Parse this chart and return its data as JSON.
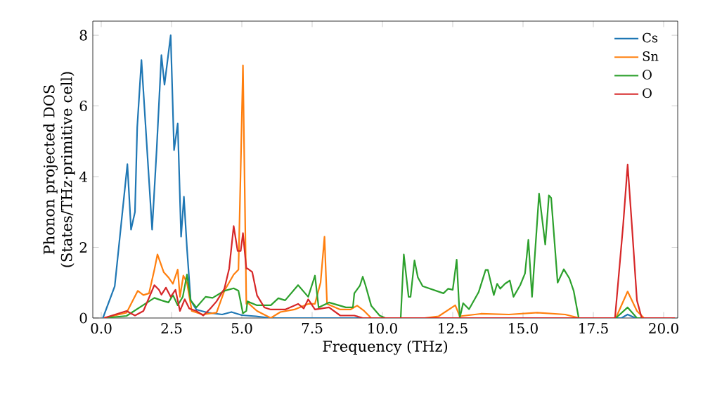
{
  "chart_data": {
    "type": "line",
    "xlabel": "Frequency (THz)",
    "ylabel": "Phonon projected DOS (States/THz·primitive cell)",
    "xlim": [
      -0.3,
      20.5
    ],
    "ylim": [
      0,
      8.4
    ],
    "xticks": [
      {
        "value": 0,
        "label": "0.0"
      },
      {
        "value": 2.5,
        "label": "2.5"
      },
      {
        "value": 5,
        "label": "5.0"
      },
      {
        "value": 7.5,
        "label": "7.5"
      },
      {
        "value": 10,
        "label": "10.0"
      },
      {
        "value": 12.5,
        "label": "12.5"
      },
      {
        "value": 15,
        "label": "15.0"
      },
      {
        "value": 17.5,
        "label": "17.5"
      },
      {
        "value": 20,
        "label": "20.0"
      }
    ],
    "yticks": [
      0,
      2,
      4,
      6,
      8
    ],
    "legend": "top right",
    "series": [
      {
        "name": "Cs",
        "color": "#1f77b4",
        "x": [
          0.06,
          0.48,
          0.93,
          1.06,
          1.2,
          1.28,
          1.43,
          1.81,
          1.97,
          2.14,
          2.25,
          2.47,
          2.59,
          2.72,
          2.84,
          2.94,
          3.05,
          3.18,
          3.38,
          3.8,
          4.3,
          4.63,
          5.0,
          5.5,
          6.0,
          10.0,
          18.5,
          18.72,
          19.0,
          20.4
        ],
        "values": [
          0,
          0.9,
          4.35,
          2.5,
          3.0,
          5.4,
          7.3,
          2.5,
          4.75,
          7.44,
          6.6,
          8.0,
          4.75,
          5.5,
          2.3,
          3.43,
          1.96,
          0.5,
          0.24,
          0.15,
          0.1,
          0.17,
          0.08,
          0.05,
          0,
          0,
          0,
          0.1,
          0,
          0
        ]
      },
      {
        "name": "Sn",
        "color": "#ff7f0e",
        "x": [
          0.1,
          0.9,
          1.3,
          1.5,
          1.7,
          1.89,
          2.0,
          2.22,
          2.39,
          2.55,
          2.72,
          2.8,
          2.92,
          3.05,
          3.22,
          3.6,
          4.1,
          4.38,
          4.71,
          4.88,
          5.04,
          5.16,
          5.2,
          5.54,
          6.03,
          6.37,
          6.87,
          7.36,
          7.6,
          7.8,
          7.94,
          8.03,
          8.5,
          8.86,
          9.1,
          9.35,
          9.6,
          11.5,
          12.0,
          12.59,
          12.75,
          13.5,
          14.5,
          15.5,
          16.5,
          17.0,
          18.3,
          18.72,
          19.05,
          19.3,
          20.4
        ],
        "values": [
          0,
          0.15,
          0.77,
          0.65,
          0.7,
          1.37,
          1.8,
          1.3,
          1.15,
          0.97,
          1.37,
          0.6,
          1.2,
          1.0,
          0.2,
          0.1,
          0.15,
          0.77,
          1.23,
          1.37,
          7.15,
          0.4,
          0.44,
          0.2,
          0,
          0.17,
          0.24,
          0.4,
          0.4,
          1.0,
          2.3,
          0.4,
          0.24,
          0.24,
          0.35,
          0.2,
          0,
          0,
          0.05,
          0.36,
          0.05,
          0.12,
          0.1,
          0.15,
          0.1,
          0,
          0,
          0.75,
          0.2,
          0,
          0
        ]
      },
      {
        "name": "O",
        "color": "#2ca02c",
        "x": [
          0.1,
          0.9,
          1.89,
          2.14,
          2.39,
          2.55,
          2.72,
          2.9,
          3.05,
          3.18,
          3.38,
          3.71,
          3.96,
          4.38,
          4.71,
          4.88,
          5.04,
          5.16,
          5.2,
          5.54,
          6.03,
          6.3,
          6.54,
          7.0,
          7.36,
          7.6,
          7.73,
          8.1,
          8.7,
          8.95,
          9.0,
          9.2,
          9.3,
          9.4,
          9.6,
          9.9,
          10.1,
          10.65,
          10.76,
          10.93,
          11.0,
          11.14,
          11.26,
          11.43,
          12.17,
          12.34,
          12.5,
          12.64,
          12.75,
          12.87,
          13.08,
          13.42,
          13.67,
          13.75,
          13.96,
          14.08,
          14.19,
          14.36,
          14.53,
          14.66,
          14.9,
          15.07,
          15.19,
          15.32,
          15.57,
          15.79,
          15.92,
          16.0,
          16.23,
          16.45,
          16.65,
          16.8,
          16.98,
          18.3,
          18.72,
          19.05,
          20.4
        ],
        "values": [
          0,
          0.06,
          0.57,
          0.5,
          0.44,
          0.65,
          0.36,
          0.6,
          1.23,
          0.5,
          0.3,
          0.6,
          0.57,
          0.77,
          0.84,
          0.77,
          0.13,
          0.2,
          0.47,
          0.36,
          0.36,
          0.56,
          0.5,
          0.93,
          0.6,
          1.2,
          0.3,
          0.44,
          0.3,
          0.3,
          0.7,
          0.92,
          1.17,
          0.92,
          0.35,
          0.07,
          0,
          0,
          1.8,
          0.6,
          0.6,
          1.63,
          1.15,
          0.9,
          0.7,
          0.83,
          0.8,
          1.65,
          0,
          0.42,
          0.25,
          0.73,
          1.36,
          1.36,
          0.65,
          0.97,
          0.83,
          0.97,
          1.06,
          0.6,
          0.93,
          1.26,
          2.21,
          0.6,
          3.52,
          2.08,
          3.47,
          3.4,
          1.0,
          1.38,
          1.12,
          0.77,
          0,
          0,
          0.3,
          0,
          0
        ]
      },
      {
        "name": "O",
        "color": "#d62728",
        "x": [
          0.1,
          0.9,
          1.2,
          1.5,
          1.89,
          2.05,
          2.14,
          2.3,
          2.47,
          2.64,
          2.8,
          2.97,
          3.13,
          3.38,
          3.63,
          3.88,
          4.1,
          4.38,
          4.55,
          4.71,
          4.85,
          4.96,
          5.04,
          5.16,
          5.2,
          5.37,
          5.54,
          5.8,
          6.03,
          6.54,
          7.0,
          7.2,
          7.36,
          7.6,
          8.1,
          8.5,
          9.0,
          9.3,
          18.27,
          18.4,
          18.56,
          18.72,
          18.89,
          19.05,
          19.22,
          20.4
        ],
        "values": [
          0,
          0.2,
          0.07,
          0.2,
          0.93,
          0.8,
          0.66,
          0.86,
          0.6,
          0.8,
          0.2,
          0.53,
          0.27,
          0.2,
          0.07,
          0.27,
          0.47,
          0.83,
          1.4,
          2.6,
          1.9,
          1.9,
          2.4,
          1.4,
          1.4,
          1.3,
          0.64,
          0.3,
          0.24,
          0.24,
          0.4,
          0.27,
          0.53,
          0.24,
          0.3,
          0.07,
          0.07,
          0,
          0,
          1.17,
          2.63,
          4.34,
          2.4,
          0.5,
          0,
          0
        ]
      }
    ]
  }
}
